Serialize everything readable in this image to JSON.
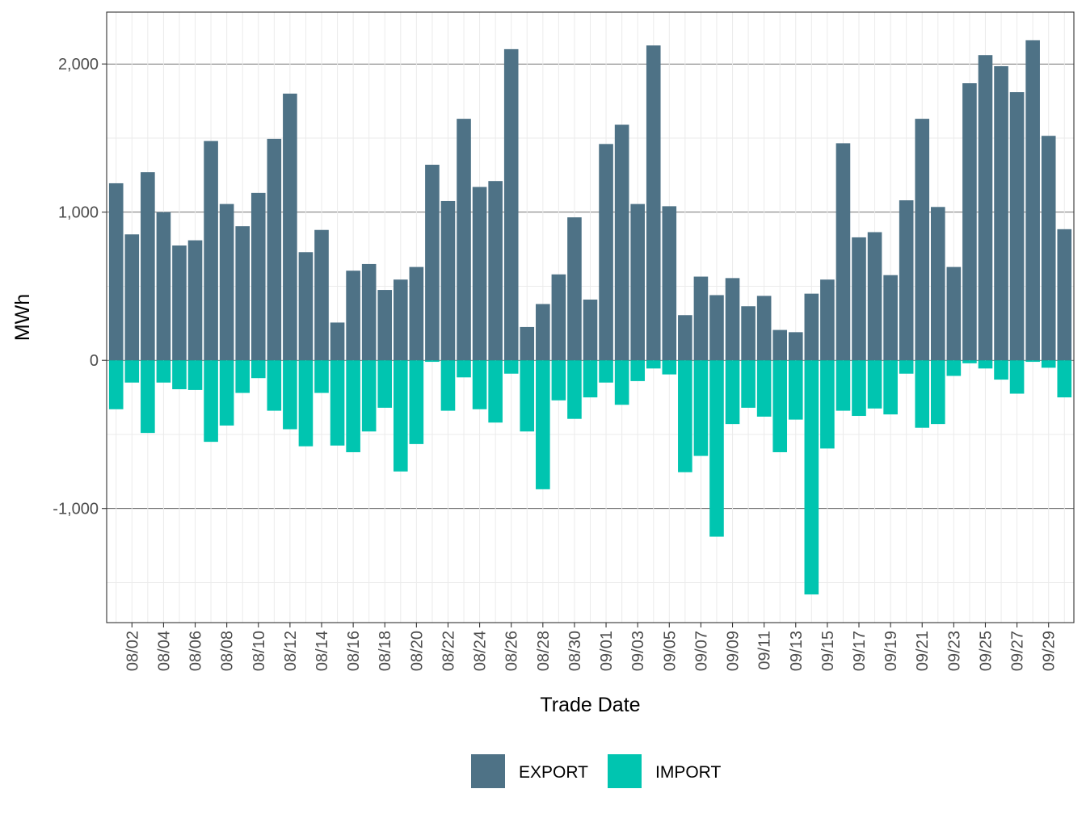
{
  "chart_data": {
    "type": "bar",
    "stacked": "diverging",
    "title": "",
    "xlabel": "Trade Date",
    "ylabel": "MWh",
    "ylim": [
      -1770,
      2350
    ],
    "y_ticks": [
      -1000,
      0,
      1000,
      2000
    ],
    "y_tick_labels": [
      "-1,000",
      "0",
      "1,000",
      "2,000"
    ],
    "grid": true,
    "legend_position": "bottom",
    "categories": [
      "08/01",
      "08/02",
      "08/03",
      "08/04",
      "08/05",
      "08/06",
      "08/07",
      "08/08",
      "08/09",
      "08/10",
      "08/11",
      "08/12",
      "08/13",
      "08/14",
      "08/15",
      "08/16",
      "08/17",
      "08/18",
      "08/19",
      "08/20",
      "08/21",
      "08/22",
      "08/23",
      "08/24",
      "08/25",
      "08/26",
      "08/27",
      "08/28",
      "08/29",
      "08/30",
      "08/31",
      "09/01",
      "09/02",
      "09/03",
      "09/04",
      "09/05",
      "09/06",
      "09/07",
      "09/08",
      "09/09",
      "09/10",
      "09/11",
      "09/12",
      "09/13",
      "09/14",
      "09/15",
      "09/16",
      "09/17",
      "09/18",
      "09/19",
      "09/20",
      "09/21",
      "09/22",
      "09/23",
      "09/24",
      "09/25",
      "09/26",
      "09/27",
      "09/28",
      "09/29",
      "09/30"
    ],
    "x_tick_labels": [
      "08/02",
      "08/04",
      "08/06",
      "08/08",
      "08/10",
      "08/12",
      "08/14",
      "08/16",
      "08/18",
      "08/20",
      "08/22",
      "08/24",
      "08/26",
      "08/28",
      "08/30",
      "09/01",
      "09/03",
      "09/05",
      "09/07",
      "09/09",
      "09/11",
      "09/13",
      "09/15",
      "09/17",
      "09/19",
      "09/21",
      "09/23",
      "09/25",
      "09/27",
      "09/29"
    ],
    "series": [
      {
        "name": "EXPORT",
        "color": "#4e7286",
        "values": [
          1195,
          850,
          1270,
          1000,
          775,
          810,
          1480,
          1055,
          905,
          1130,
          1495,
          1800,
          730,
          880,
          255,
          605,
          650,
          475,
          545,
          630,
          1320,
          1075,
          1630,
          1170,
          1210,
          2100,
          225,
          380,
          580,
          965,
          410,
          1460,
          1590,
          1055,
          2125,
          1040,
          305,
          565,
          440,
          555,
          365,
          435,
          205,
          190,
          450,
          545,
          1465,
          830,
          865,
          575,
          1080,
          1630,
          1035,
          630,
          1870,
          2060,
          1985,
          1810,
          2160,
          1515,
          885
        ]
      },
      {
        "name": "IMPORT",
        "color": "#00c5b0",
        "values": [
          -330,
          -150,
          -490,
          -150,
          -195,
          -200,
          -550,
          -440,
          -220,
          -120,
          -340,
          -465,
          -580,
          -220,
          -575,
          -620,
          -480,
          -320,
          -750,
          -565,
          -10,
          -340,
          -115,
          -330,
          -420,
          -90,
          -480,
          -870,
          -270,
          -395,
          -250,
          -150,
          -300,
          -140,
          -55,
          -95,
          -755,
          -645,
          -1190,
          -430,
          -320,
          -380,
          -620,
          -400,
          -1580,
          -595,
          -340,
          -375,
          -325,
          -365,
          -90,
          -455,
          -430,
          -105,
          -20,
          -55,
          -130,
          -225,
          -10,
          -50,
          -250
        ]
      }
    ]
  }
}
